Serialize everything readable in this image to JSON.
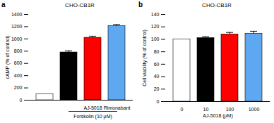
{
  "chart_data": [
    {
      "type": "bar",
      "title": "CHO-CB1R",
      "annotations": [
        {
          "text": "a"
        },
        {
          "text": "Forskolin (10 μM)",
          "from": 1,
          "to": 3
        }
      ],
      "categories": [
        null,
        null,
        "AJ-5018",
        "Rimonabant"
      ],
      "values": [
        100,
        780,
        1020,
        1210
      ],
      "errors": [
        0,
        25,
        25,
        25
      ],
      "colors": [
        "#ffffff",
        "#000000",
        "#ff0000",
        "#5ea8f2"
      ],
      "y_label": "cAMP (% of control)",
      "ylim": [
        0,
        1400
      ],
      "yticks": [
        0,
        200,
        400,
        600,
        800,
        1000,
        1200,
        1400
      ]
    },
    {
      "type": "bar",
      "title": "CHO-CB1R",
      "annotations": [
        {
          "text": "b"
        }
      ],
      "categories": [
        "0",
        "10",
        "100",
        "1000"
      ],
      "values": [
        100,
        102,
        108,
        109
      ],
      "errors": [
        0,
        2,
        3,
        4
      ],
      "colors": [
        "#ffffff",
        "#000000",
        "#ff0000",
        "#5ea8f2"
      ],
      "x_label": "AJ-5018 (μM)",
      "y_label": "Cell viability (% of control)",
      "ylim": [
        0,
        140
      ],
      "yticks": [
        0,
        20,
        40,
        60,
        80,
        100,
        120,
        140
      ]
    }
  ]
}
